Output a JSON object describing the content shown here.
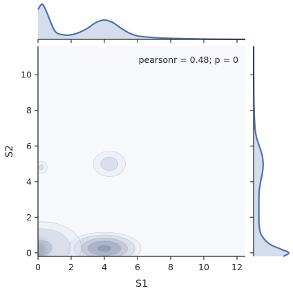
{
  "chart_data": {
    "type": "jointplot-kde",
    "xlabel": "S1",
    "ylabel": "S2",
    "xlim": [
      0,
      12.5
    ],
    "ylim": [
      -0.2,
      11.6
    ],
    "x_ticks": [
      0,
      2,
      4,
      6,
      8,
      10,
      12
    ],
    "y_ticks": [
      0,
      2,
      4,
      6,
      8,
      10
    ],
    "annotation": "pearsonr = 0.48; p = 0",
    "annotation_placement": "top-right",
    "grid": false,
    "colors": {
      "plot_background": "#f7f8fc",
      "line": "#4c72b0",
      "fill": "#c7d1e6",
      "contour_dark": "#2d2d3a"
    },
    "joint_density_modes": [
      {
        "x": 0.1,
        "y": 0.15,
        "peak": 1.0,
        "sx": 0.3,
        "sy": 0.35
      },
      {
        "x": 4.0,
        "y": 0.25,
        "peak": 0.45,
        "sx": 1.1,
        "sy": 0.45
      },
      {
        "x": 0.2,
        "y": 0.3,
        "peak": 0.22,
        "sx": 1.5,
        "sy": 0.9
      },
      {
        "x": 4.3,
        "y": 5.0,
        "peak": 0.14,
        "sx": 0.75,
        "sy": 0.55
      },
      {
        "x": 0.2,
        "y": 4.8,
        "peak": 0.12,
        "sx": 0.3,
        "sy": 0.3
      }
    ],
    "contour_levels": [
      0.06,
      0.11,
      0.2,
      0.3,
      0.42,
      0.54,
      0.66,
      0.78,
      0.9
    ],
    "marginal_x": {
      "x": [
        0,
        0.25,
        0.5,
        1,
        1.5,
        2,
        2.5,
        3,
        3.5,
        4,
        4.5,
        5,
        5.5,
        6,
        7,
        8,
        9,
        10,
        11,
        12.5
      ],
      "density": [
        0.85,
        1.0,
        0.8,
        0.25,
        0.13,
        0.13,
        0.2,
        0.32,
        0.48,
        0.55,
        0.48,
        0.32,
        0.18,
        0.1,
        0.05,
        0.03,
        0.02,
        0.01,
        0.005,
        0
      ]
    },
    "marginal_y": {
      "y": [
        -0.2,
        0,
        0.2,
        0.5,
        1,
        1.5,
        2,
        2.5,
        3,
        3.5,
        4,
        4.5,
        5,
        5.5,
        6,
        6.5,
        7,
        8,
        9,
        10,
        11.6
      ],
      "density": [
        0.85,
        1.0,
        0.78,
        0.45,
        0.22,
        0.16,
        0.15,
        0.15,
        0.15,
        0.16,
        0.2,
        0.25,
        0.27,
        0.24,
        0.16,
        0.08,
        0.04,
        0.015,
        0.005,
        0.002,
        0
      ]
    }
  }
}
